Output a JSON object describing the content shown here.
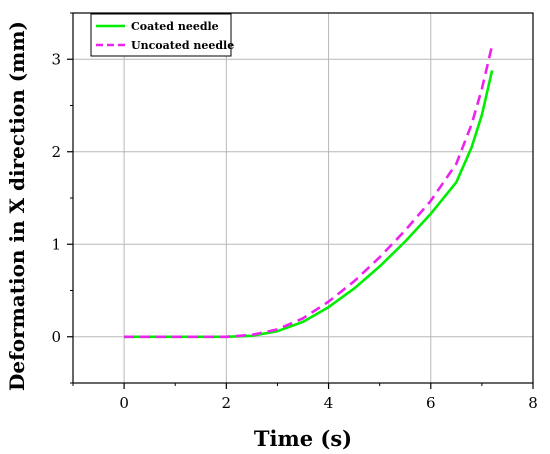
{
  "chart_data": {
    "type": "line",
    "title": "",
    "xlabel": "Time (s)",
    "ylabel": "Deformation in X direction (mm)",
    "xlim": [
      -1,
      8
    ],
    "ylim": [
      -0.5,
      3.5
    ],
    "x_ticks": [
      "0",
      "2",
      "4",
      "6",
      "8"
    ],
    "y_ticks": [
      "0",
      "1",
      "2",
      "3"
    ],
    "grid": true,
    "legend_position": "top-left",
    "series": [
      {
        "name": "Coated needle",
        "color": "#00ee00",
        "style": "solid",
        "x": [
          0,
          1,
          2,
          2.5,
          3,
          3.5,
          4,
          4.5,
          5,
          5.5,
          6,
          6.5,
          6.8,
          7,
          7.2
        ],
        "y": [
          0,
          0,
          0,
          0.01,
          0.06,
          0.16,
          0.32,
          0.52,
          0.76,
          1.03,
          1.33,
          1.67,
          2.05,
          2.4,
          2.88
        ]
      },
      {
        "name": "Uncoated needle",
        "color": "#ee22ee",
        "style": "dashed",
        "x": [
          0,
          1,
          2,
          2.5,
          3,
          3.5,
          4,
          4.5,
          5,
          5.5,
          6,
          6.5,
          6.8,
          7,
          7.2
        ],
        "y": [
          0,
          0,
          0,
          0.02,
          0.08,
          0.2,
          0.38,
          0.6,
          0.86,
          1.15,
          1.47,
          1.87,
          2.3,
          2.68,
          3.15
        ]
      }
    ]
  }
}
